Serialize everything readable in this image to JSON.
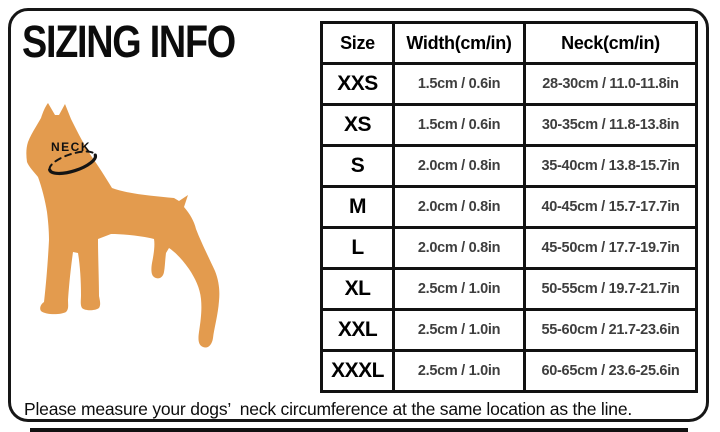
{
  "title": "SIZING INFO",
  "diagram": {
    "neck_label": "NECK",
    "dog_color": "#E39B4E"
  },
  "chart_data": {
    "type": "table",
    "title": "SIZING INFO",
    "columns": [
      "Size",
      "Width(cm/in)",
      "Neck(cm/in)"
    ],
    "rows": [
      [
        "XXS",
        "1.5cm / 0.6in",
        "28-30cm / 11.0-11.8in"
      ],
      [
        "XS",
        "1.5cm / 0.6in",
        "30-35cm / 11.8-13.8in"
      ],
      [
        "S",
        "2.0cm / 0.8in",
        "35-40cm / 13.8-15.7in"
      ],
      [
        "M",
        "2.0cm / 0.8in",
        "40-45cm / 15.7-17.7in"
      ],
      [
        "L",
        "2.0cm / 0.8in",
        "45-50cm / 17.7-19.7in"
      ],
      [
        "XL",
        "2.5cm / 1.0in",
        "50-55cm / 19.7-21.7in"
      ],
      [
        "XXL",
        "2.5cm / 1.0in",
        "55-60cm / 21.7-23.6in"
      ],
      [
        "XXXL",
        "2.5cm / 1.0in",
        "60-65cm / 23.6-25.6in"
      ]
    ]
  },
  "footnote": "Please measure your dogs’  neck circumference at the same location as the line.",
  "colors": {
    "dog": "#E39B4E",
    "border": "#121212",
    "value_text": "#3E3E3E",
    "background": "#FFFFFF"
  }
}
